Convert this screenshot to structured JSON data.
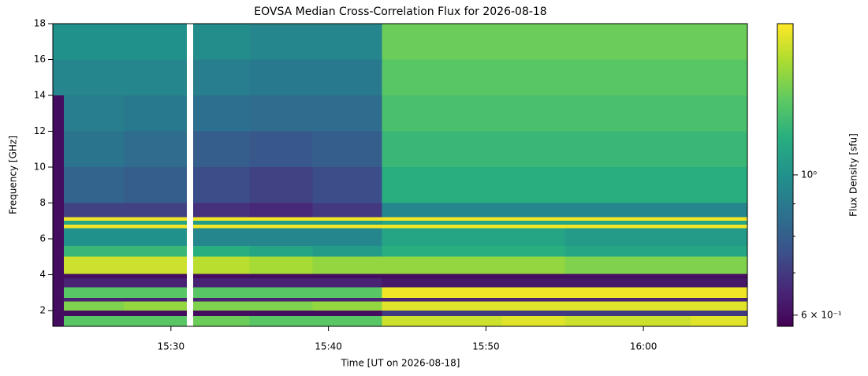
{
  "chart_data": {
    "type": "heatmap",
    "title": "EOVSA Median Cross-Correlation Flux for 2026-08-18",
    "xlabel": "Time [UT on 2026-08-18]",
    "ylabel": "Frequency [GHz]",
    "colorbar_label": "Flux Density [sfu]",
    "colormap": "viridis",
    "color_scale": "log",
    "xlim": [
      22.5,
      66.6
    ],
    "xticks": [
      {
        "value": 30,
        "label": "15:30"
      },
      {
        "value": 40,
        "label": "15:40"
      },
      {
        "value": 50,
        "label": "15:50"
      },
      {
        "value": 60,
        "label": "16:00"
      }
    ],
    "ylim": [
      1.12,
      18
    ],
    "yticks": [
      2,
      4,
      6,
      8,
      10,
      12,
      14,
      16,
      18
    ],
    "clim": [
      0.576,
      1.735
    ],
    "cticks": [
      {
        "value": 0.6,
        "label": "6 × 10⁻¹"
      },
      {
        "value": 1,
        "label": "10⁰"
      }
    ],
    "cminor": [
      0.7,
      0.8,
      0.9
    ],
    "xbins": [
      22.5,
      23.2,
      27,
      31,
      31.4,
      35,
      39,
      43.4,
      47,
      51,
      55,
      59,
      63,
      66.6
    ],
    "ybins": [
      1.12,
      1.7,
      2.0,
      2.5,
      2.7,
      3.3,
      3.8,
      4.05,
      5,
      5.6,
      6.6,
      6.8,
      7.0,
      7.2,
      8,
      10,
      12,
      14,
      16,
      18
    ],
    "z": [
      [
        0.6,
        1.3,
        1.3,
        null,
        1.35,
        1.3,
        1.3,
        1.6,
        1.6,
        1.65,
        1.6,
        1.6,
        1.65
      ],
      [
        0.6,
        0.6,
        0.6,
        null,
        0.6,
        0.6,
        0.6,
        0.7,
        0.7,
        0.7,
        0.7,
        0.7,
        0.7
      ],
      [
        0.6,
        1.4,
        1.45,
        null,
        1.4,
        1.4,
        1.45,
        1.65,
        1.65,
        1.65,
        1.65,
        1.65,
        1.65
      ],
      [
        0.6,
        0.65,
        0.65,
        null,
        0.65,
        0.65,
        0.65,
        0.65,
        0.65,
        0.65,
        0.65,
        0.65,
        0.65
      ],
      [
        0.6,
        1.3,
        1.3,
        null,
        1.3,
        1.3,
        1.3,
        1.7,
        1.7,
        1.7,
        1.7,
        1.7,
        1.7
      ],
      [
        0.6,
        0.65,
        0.65,
        null,
        0.65,
        0.65,
        0.65,
        0.62,
        0.62,
        0.62,
        0.62,
        0.62,
        0.62
      ],
      [
        0.6,
        0.6,
        0.6,
        null,
        0.6,
        0.6,
        0.6,
        0.6,
        0.6,
        0.6,
        0.6,
        0.6,
        0.6
      ],
      [
        0.6,
        1.6,
        1.6,
        null,
        1.55,
        1.5,
        1.45,
        1.45,
        1.45,
        1.45,
        1.4,
        1.4,
        1.4
      ],
      [
        0.6,
        1.2,
        1.2,
        null,
        1.15,
        1.1,
        1.05,
        1.15,
        1.15,
        1.15,
        1.1,
        1.1,
        1.1
      ],
      [
        0.6,
        1.0,
        1.0,
        null,
        0.95,
        0.95,
        0.95,
        1.1,
        1.1,
        1.1,
        1.05,
        1.05,
        1.05
      ],
      [
        0.6,
        1.7,
        1.7,
        null,
        1.7,
        1.7,
        1.7,
        1.7,
        1.7,
        1.7,
        1.7,
        1.7,
        1.7
      ],
      [
        0.6,
        1.1,
        1.1,
        null,
        1.05,
        1.05,
        1.05,
        1.1,
        1.1,
        1.1,
        1.1,
        1.1,
        1.1
      ],
      [
        0.6,
        1.7,
        1.7,
        null,
        1.7,
        1.7,
        1.7,
        1.7,
        1.7,
        1.7,
        1.7,
        1.7,
        1.7
      ],
      [
        0.6,
        0.72,
        0.72,
        null,
        0.68,
        0.66,
        0.7,
        0.95,
        0.95,
        0.95,
        0.95,
        0.95,
        0.95
      ],
      [
        0.6,
        0.82,
        0.8,
        null,
        0.75,
        0.72,
        0.75,
        1.15,
        1.15,
        1.15,
        1.15,
        1.15,
        1.15
      ],
      [
        0.6,
        0.88,
        0.85,
        null,
        0.8,
        0.78,
        0.8,
        1.2,
        1.2,
        1.2,
        1.2,
        1.2,
        1.2
      ],
      [
        0.6,
        0.92,
        0.9,
        null,
        0.86,
        0.85,
        0.85,
        1.25,
        1.25,
        1.25,
        1.25,
        1.25,
        1.25
      ],
      [
        0.95,
        0.95,
        0.95,
        null,
        0.92,
        0.9,
        0.9,
        1.3,
        1.3,
        1.3,
        1.3,
        1.3,
        1.3
      ],
      [
        1.0,
        1.0,
        1.0,
        null,
        0.98,
        0.95,
        0.95,
        1.35,
        1.35,
        1.35,
        1.35,
        1.35,
        1.35
      ]
    ]
  }
}
